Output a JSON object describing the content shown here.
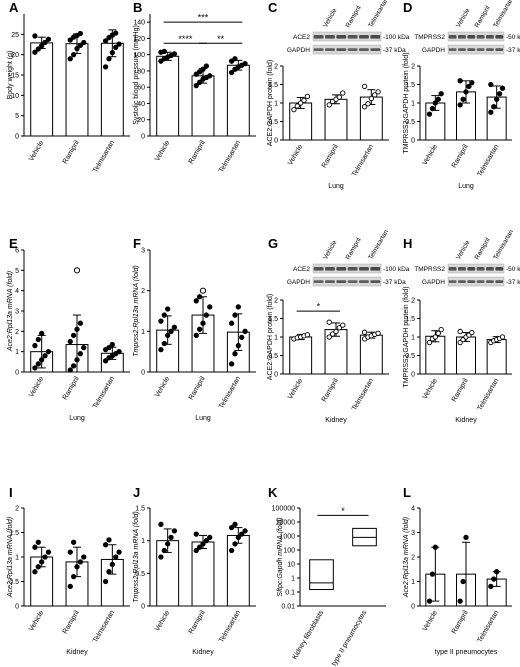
{
  "chart_data": [
    {
      "panel": "A",
      "type": "bar",
      "ylabel": "Body weight (g)",
      "xlabel": "",
      "ylim": [
        0,
        30
      ],
      "yticks": [
        0,
        5,
        10,
        15,
        20,
        25
      ],
      "filled_points": true,
      "categories": [
        "Vehicle",
        "Ramipril",
        "Telmisartan"
      ],
      "values": [
        22.9,
        22.7,
        22.8
      ],
      "errors": [
        1.4,
        2.4,
        3.3
      ],
      "points": [
        [
          20.6,
          21.4,
          22.2,
          23.0,
          23.8,
          24.6
        ],
        [
          19.0,
          20.0,
          21.5,
          22.3,
          23.0,
          23.6,
          24.3,
          24.7,
          25.2
        ],
        [
          17.0,
          19.0,
          20.5,
          21.8,
          22.6,
          23.4,
          24.2,
          24.8,
          25.3
        ]
      ],
      "blot": null,
      "annotations": []
    },
    {
      "panel": "B",
      "type": "bar",
      "ylabel": "Systolic blood pressure (mmHg)",
      "xlabel": "",
      "ylim": [
        0,
        150
      ],
      "yticks": [
        0,
        20,
        40,
        60,
        80,
        100,
        120,
        140
      ],
      "filled_points": true,
      "categories": [
        "Vehicle",
        "Ramipril",
        "Telmisartan"
      ],
      "values": [
        98,
        74,
        87
      ],
      "errors": [
        5,
        9,
        6
      ],
      "points": [
        [
          92,
          95,
          97,
          99,
          101,
          103,
          104
        ],
        [
          62,
          66,
          70,
          72,
          74,
          76,
          79,
          82,
          86
        ],
        [
          78,
          82,
          85,
          87,
          89,
          92,
          95
        ]
      ],
      "blot": null,
      "annotations": [
        {
          "text": "***",
          "from": 0,
          "to": 2,
          "y": 140
        },
        {
          "text": "****",
          "from": 0,
          "to": 1,
          "y": 114
        },
        {
          "text": "**",
          "from": 1,
          "to": 2,
          "y": 114
        }
      ]
    },
    {
      "panel": "C",
      "type": "bar",
      "ylabel": "ACE2:GAPDH protein (fold)",
      "xlabel": "Lung",
      "ylim": [
        0,
        2.0
      ],
      "yticks": [
        0,
        0.5,
        1.0,
        1.5,
        2.0
      ],
      "filled_points": false,
      "categories": [
        "Vehicle",
        "Ramipril",
        "Telmisartan"
      ],
      "values": [
        1.0,
        1.1,
        1.16
      ],
      "errors": [
        0.15,
        0.12,
        0.2
      ],
      "points": [
        [
          0.82,
          0.92,
          1.0,
          1.07,
          1.18
        ],
        [
          0.95,
          1.04,
          1.1,
          1.16,
          1.27
        ],
        [
          0.9,
          0.98,
          1.12,
          1.22,
          1.3,
          1.45
        ]
      ],
      "blot": {
        "rows": [
          "ACE2",
          "GAPDH"
        ],
        "sizes": [
          "-100 kDa",
          "-37 kDa"
        ],
        "lanes": [
          "Vehicle",
          "Ramipril",
          "Telmisartan"
        ]
      },
      "annotations": []
    },
    {
      "panel": "D",
      "type": "bar",
      "ylabel": "TMPRSS2:GAPDH protein (fold)",
      "xlabel": "Lung",
      "ylim": [
        0,
        2.0
      ],
      "yticks": [
        0,
        0.5,
        1.0,
        1.5,
        2.0
      ],
      "filled_points": true,
      "categories": [
        "Vehicle",
        "Ramipril",
        "Telmisartan"
      ],
      "values": [
        1.0,
        1.3,
        1.16
      ],
      "errors": [
        0.2,
        0.3,
        0.3
      ],
      "points": [
        [
          0.7,
          0.85,
          1.0,
          1.1,
          1.25
        ],
        [
          0.95,
          1.1,
          1.3,
          1.45,
          1.55,
          1.6
        ],
        [
          0.75,
          0.9,
          1.1,
          1.25,
          1.4,
          1.5
        ]
      ],
      "blot": {
        "rows": [
          "TMPRSS2",
          "GAPDH"
        ],
        "sizes": [
          "-50 kDa",
          "-37 kDa"
        ],
        "lanes": [
          "Vehicle",
          "Ramipril",
          "Telmisartan"
        ]
      },
      "annotations": []
    },
    {
      "panel": "E",
      "type": "bar",
      "ylabel": "Ace2:Rpl13a mRNA (fold)",
      "xlabel": "Lung",
      "ylim": [
        0,
        6
      ],
      "yticks": [
        0,
        1,
        2,
        3,
        4,
        5,
        6
      ],
      "filled_points": true,
      "open_outlier": 5.0,
      "categories": [
        "Vehicle",
        "Ramipril",
        "Telmisartan"
      ],
      "values": [
        1.0,
        1.35,
        0.92
      ],
      "errors": [
        0.8,
        1.45,
        0.3
      ],
      "points": [
        [
          0.2,
          0.4,
          0.6,
          0.8,
          1.0,
          1.3,
          1.6,
          1.9
        ],
        [
          0.1,
          0.3,
          0.6,
          0.9,
          1.2,
          1.5,
          1.8,
          2.1,
          2.4
        ],
        [
          0.55,
          0.7,
          0.8,
          0.9,
          1.0,
          1.1,
          1.2,
          1.35
        ]
      ],
      "blot": null,
      "annotations": []
    },
    {
      "panel": "F",
      "type": "bar",
      "ylabel": "Tmprss2:Rpl13a mRNA (fold)",
      "xlabel": "Lung",
      "ylim": [
        0,
        3
      ],
      "yticks": [
        0,
        1,
        2,
        3
      ],
      "filled_points": true,
      "open_outlier": 2.0,
      "categories": [
        "Vehicle",
        "Ramipril",
        "Telmisartan"
      ],
      "values": [
        1.03,
        1.4,
        0.98
      ],
      "errors": [
        0.35,
        0.45,
        0.45
      ],
      "points": [
        [
          0.55,
          0.7,
          0.9,
          1.0,
          1.1,
          1.25,
          1.4,
          1.55
        ],
        [
          0.9,
          1.05,
          1.2,
          1.4,
          1.6,
          1.75,
          1.85
        ],
        [
          0.2,
          0.45,
          0.65,
          0.85,
          1.0,
          1.2,
          1.4,
          1.6
        ]
      ],
      "blot": null,
      "annotations": []
    },
    {
      "panel": "G",
      "type": "bar",
      "ylabel": "ACE2:GAPDH protein (fold)",
      "xlabel": "Kidney",
      "ylim": [
        0,
        2.0
      ],
      "yticks": [
        0,
        0.5,
        1.0,
        1.5,
        2.0
      ],
      "filled_points": false,
      "categories": [
        "Vehicle",
        "Ramipril",
        "Telmisartan"
      ],
      "values": [
        1.0,
        1.2,
        1.05
      ],
      "errors": [
        0.07,
        0.18,
        0.08
      ],
      "points": [
        [
          0.95,
          0.98,
          1.0,
          1.03,
          1.06
        ],
        [
          1.0,
          1.08,
          1.15,
          1.25,
          1.32,
          1.4
        ],
        [
          0.95,
          1.0,
          1.03,
          1.07,
          1.1,
          1.13
        ]
      ],
      "blot": {
        "rows": [
          "ACE2",
          "GAPDH"
        ],
        "sizes": [
          "-100 kDa",
          "-37 kDa"
        ],
        "lanes": [
          "Vehicle",
          "Ramipril",
          "Telmisartan"
        ]
      },
      "annotations": [
        {
          "text": "*",
          "from": 0,
          "to": 1,
          "y": 1.7
        }
      ]
    },
    {
      "panel": "H",
      "type": "bar",
      "ylabel": "TMPRSS2:GAPDH protein (fold)",
      "xlabel": "Kidney",
      "ylim": [
        0,
        2.0
      ],
      "yticks": [
        0,
        0.5,
        1.0,
        1.5,
        2.0
      ],
      "filled_points": false,
      "categories": [
        "Vehicle",
        "Ramipril",
        "Telmisartan"
      ],
      "values": [
        1.02,
        1.0,
        0.93
      ],
      "errors": [
        0.15,
        0.12,
        0.08
      ],
      "points": [
        [
          0.85,
          0.95,
          1.0,
          1.1,
          1.2
        ],
        [
          0.85,
          0.93,
          1.0,
          1.05,
          1.12,
          1.15
        ],
        [
          0.85,
          0.9,
          0.93,
          0.96,
          1.0
        ]
      ],
      "blot": {
        "rows": [
          "TMPRSS2",
          "GAPDH"
        ],
        "sizes": [
          "-50 kDa",
          "-37 kDa"
        ],
        "lanes": [
          "Vehicle",
          "Ramipril",
          "Telmisartan"
        ]
      },
      "annotations": []
    },
    {
      "panel": "I",
      "type": "bar",
      "ylabel": "Ace2:Rpl13a mRNA (fold)",
      "xlabel": "Kidney",
      "ylim": [
        0,
        2.0
      ],
      "yticks": [
        0,
        0.5,
        1.0,
        1.5,
        2.0
      ],
      "filled_points": true,
      "categories": [
        "Vehicle",
        "Ramipril",
        "Telmisartan"
      ],
      "values": [
        1.0,
        0.9,
        0.95
      ],
      "errors": [
        0.2,
        0.3,
        0.3
      ],
      "points": [
        [
          0.7,
          0.8,
          0.9,
          1.0,
          1.1,
          1.2,
          1.3
        ],
        [
          0.4,
          0.6,
          0.8,
          0.9,
          1.0,
          1.1,
          1.3
        ],
        [
          0.5,
          0.7,
          0.85,
          1.0,
          1.1,
          1.25,
          1.35
        ]
      ],
      "blot": null,
      "annotations": []
    },
    {
      "panel": "J",
      "type": "bar",
      "ylabel": "Tmprss2:Rpl13a mRNA (fold)",
      "xlabel": "Kidney",
      "ylim": [
        0,
        1.5
      ],
      "yticks": [
        0,
        0.5,
        1.0,
        1.5
      ],
      "filled_points": true,
      "categories": [
        "Vehicle",
        "Ramipril",
        "Telmisartan"
      ],
      "values": [
        1.0,
        0.98,
        1.08
      ],
      "errors": [
        0.18,
        0.1,
        0.12
      ],
      "points": [
        [
          0.75,
          0.85,
          0.95,
          1.05,
          1.15,
          1.25
        ],
        [
          0.85,
          0.9,
          0.95,
          1.0,
          1.05,
          1.1
        ],
        [
          0.85,
          0.95,
          1.05,
          1.1,
          1.15,
          1.2,
          1.25
        ]
      ],
      "blot": null,
      "annotations": []
    },
    {
      "panel": "K",
      "type": "box",
      "ylabel": "Sftpc:Gapdh mRNA (fold)",
      "xlabel": "",
      "yscale": "log",
      "ylim": [
        0.01,
        100000
      ],
      "yticks": [
        0.01,
        0.1,
        1,
        10,
        100,
        1000,
        10000,
        100000
      ],
      "yticklabels": [
        "0.01",
        "0.1",
        "1",
        "10",
        "100",
        "1000",
        "10000",
        "100000"
      ],
      "categories": [
        "Kidney fibroblasts",
        "type II pneumocytes"
      ],
      "boxes": [
        {
          "min": 0.15,
          "median": 0.45,
          "max": 20
        },
        {
          "min": 200,
          "median": 800,
          "max": 3500
        }
      ],
      "annotations": [
        {
          "text": "*",
          "from": 0,
          "to": 1,
          "y": 30000
        }
      ]
    },
    {
      "panel": "L",
      "type": "bar",
      "ylabel": "Ace2:Rpl13a mRNA (fold)",
      "xlabel": "type II pneumocytes",
      "ylim": [
        0,
        4
      ],
      "yticks": [
        0,
        1,
        2,
        3,
        4
      ],
      "filled_points": true,
      "categories": [
        "Vehicle",
        "Ramipril",
        "Telmisartan"
      ],
      "values": [
        1.3,
        1.3,
        1.1
      ],
      "errors": [
        1.1,
        1.3,
        0.3
      ],
      "points": [
        [
          0.2,
          1.3,
          2.4
        ],
        [
          0.2,
          1.0,
          2.8
        ],
        [
          0.8,
          1.1,
          1.4
        ]
      ],
      "blot": null,
      "annotations": []
    }
  ]
}
